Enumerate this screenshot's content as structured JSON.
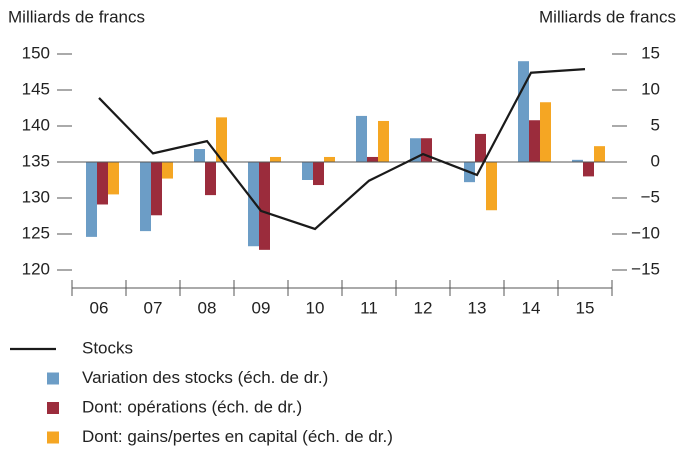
{
  "chart_data": {
    "type": "bar-line",
    "y_label": "Milliards de francs",
    "y2_label": "Milliards de francs",
    "categories": [
      "06",
      "07",
      "08",
      "09",
      "10",
      "11",
      "12",
      "13",
      "14",
      "15"
    ],
    "ylim": [
      117.5,
      152.5
    ],
    "yticks": [
      120,
      125,
      130,
      135,
      140,
      145,
      150
    ],
    "y2lim": [
      -17.5,
      17.5
    ],
    "y2ticks": [
      {
        "value": -15,
        "label": "−15"
      },
      {
        "value": -10,
        "label": "−10"
      },
      {
        "value": -5,
        "label": "−5"
      },
      0,
      5,
      10,
      15
    ],
    "series": [
      {
        "name": "Stocks",
        "type": "line",
        "color": "#1a1a1a",
        "axis": "y",
        "values": [
          143.9,
          136.2,
          137.9,
          128.2,
          125.7,
          132.4,
          136.1,
          133.2,
          147.4,
          147.9
        ]
      },
      {
        "name": "Variation des stocks (éch. de dr.)",
        "type": "bar",
        "color": "#6c9dc6",
        "axis": "y2",
        "values": [
          -10.4,
          -9.6,
          1.8,
          -11.7,
          -2.5,
          6.4,
          3.3,
          -2.8,
          14.0,
          0.3
        ]
      },
      {
        "name": "Dont: opérations (éch. de dr.)",
        "type": "bar",
        "color": "#9b2c3c",
        "axis": "y2",
        "values": [
          -5.9,
          -7.4,
          -4.6,
          -12.2,
          -3.2,
          0.7,
          3.3,
          3.9,
          5.8,
          -2.0
        ]
      },
      {
        "name": "Dont: gains/pertes en capital (éch. de dr.)",
        "type": "bar",
        "color": "#f5a623",
        "axis": "y2",
        "values": [
          -4.5,
          -2.3,
          6.2,
          0.7,
          0.7,
          5.7,
          0,
          -6.7,
          8.3,
          2.2
        ]
      }
    ]
  }
}
